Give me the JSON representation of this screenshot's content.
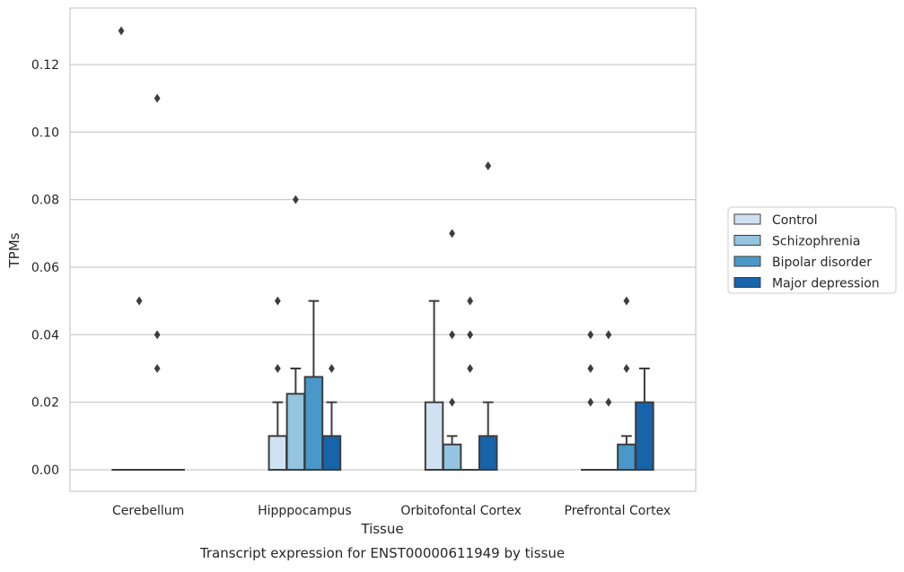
{
  "chart_data": {
    "type": "box",
    "title": "",
    "caption": "Transcript expression for ENST00000611949 by tissue",
    "xlabel": "Tissue",
    "ylabel": "TPMs",
    "ylim": [
      -0.0065,
      0.1375
    ],
    "yticks": [
      0.0,
      0.02,
      0.04,
      0.06,
      0.08,
      0.1,
      0.12
    ],
    "ytick_labels": [
      "0.00",
      "0.02",
      "0.04",
      "0.06",
      "0.08",
      "0.10",
      "0.12"
    ],
    "grid": true,
    "legend_position": "right",
    "categories": [
      "Cerebellum",
      "Hipppocampus",
      "Orbitofontal Cortex",
      "Prefrontal Cortex"
    ],
    "series": [
      {
        "name": "Control",
        "color": "#d0e1f2"
      },
      {
        "name": "Schizophrenia",
        "color": "#94c4df"
      },
      {
        "name": "Bipolar disorder",
        "color": "#4a98c9"
      },
      {
        "name": "Major depression",
        "color": "#1764ab"
      }
    ],
    "boxes": [
      [
        {
          "q1": 0,
          "median": 0,
          "q3": 0,
          "whisker_low": 0,
          "whisker_high": 0,
          "outliers": [
            0.13
          ]
        },
        {
          "q1": 0,
          "median": 0,
          "q3": 0,
          "whisker_low": 0,
          "whisker_high": 0,
          "outliers": [
            0.05
          ]
        },
        {
          "q1": 0,
          "median": 0,
          "q3": 0,
          "whisker_low": 0,
          "whisker_high": 0,
          "outliers": [
            0.11,
            0.04,
            0.03
          ]
        },
        {
          "q1": 0,
          "median": 0,
          "q3": 0,
          "whisker_low": 0,
          "whisker_high": 0,
          "outliers": []
        }
      ],
      [
        {
          "q1": 0,
          "median": 0,
          "q3": 0.01,
          "whisker_low": 0,
          "whisker_high": 0.02,
          "outliers": [
            0.05,
            0.03
          ]
        },
        {
          "q1": 0,
          "median": 0,
          "q3": 0.0225,
          "whisker_low": 0,
          "whisker_high": 0.03,
          "outliers": [
            0.08
          ]
        },
        {
          "q1": 0,
          "median": 0,
          "q3": 0.0275,
          "whisker_low": 0,
          "whisker_high": 0.05,
          "outliers": []
        },
        {
          "q1": 0,
          "median": 0,
          "q3": 0.01,
          "whisker_low": 0,
          "whisker_high": 0.02,
          "outliers": [
            0.03
          ]
        }
      ],
      [
        {
          "q1": 0,
          "median": 0,
          "q3": 0.02,
          "whisker_low": 0,
          "whisker_high": 0.05,
          "outliers": []
        },
        {
          "q1": 0,
          "median": 0,
          "q3": 0.0075,
          "whisker_low": 0,
          "whisker_high": 0.01,
          "outliers": [
            0.07,
            0.04,
            0.02
          ]
        },
        {
          "q1": 0,
          "median": 0,
          "q3": 0,
          "whisker_low": 0,
          "whisker_high": 0,
          "outliers": [
            0.05,
            0.04,
            0.03
          ]
        },
        {
          "q1": 0,
          "median": 0,
          "q3": 0.01,
          "whisker_low": 0,
          "whisker_high": 0.02,
          "outliers": [
            0.09
          ]
        }
      ],
      [
        {
          "q1": 0,
          "median": 0,
          "q3": 0,
          "whisker_low": 0,
          "whisker_high": 0,
          "outliers": [
            0.04,
            0.03,
            0.02
          ]
        },
        {
          "q1": 0,
          "median": 0,
          "q3": 0,
          "whisker_low": 0,
          "whisker_high": 0,
          "outliers": [
            0.04,
            0.02
          ]
        },
        {
          "q1": 0,
          "median": 0,
          "q3": 0.0075,
          "whisker_low": 0,
          "whisker_high": 0.01,
          "outliers": [
            0.05,
            0.03
          ]
        },
        {
          "q1": 0,
          "median": 0,
          "q3": 0.02,
          "whisker_low": 0,
          "whisker_high": 0.03,
          "outliers": []
        }
      ]
    ]
  }
}
